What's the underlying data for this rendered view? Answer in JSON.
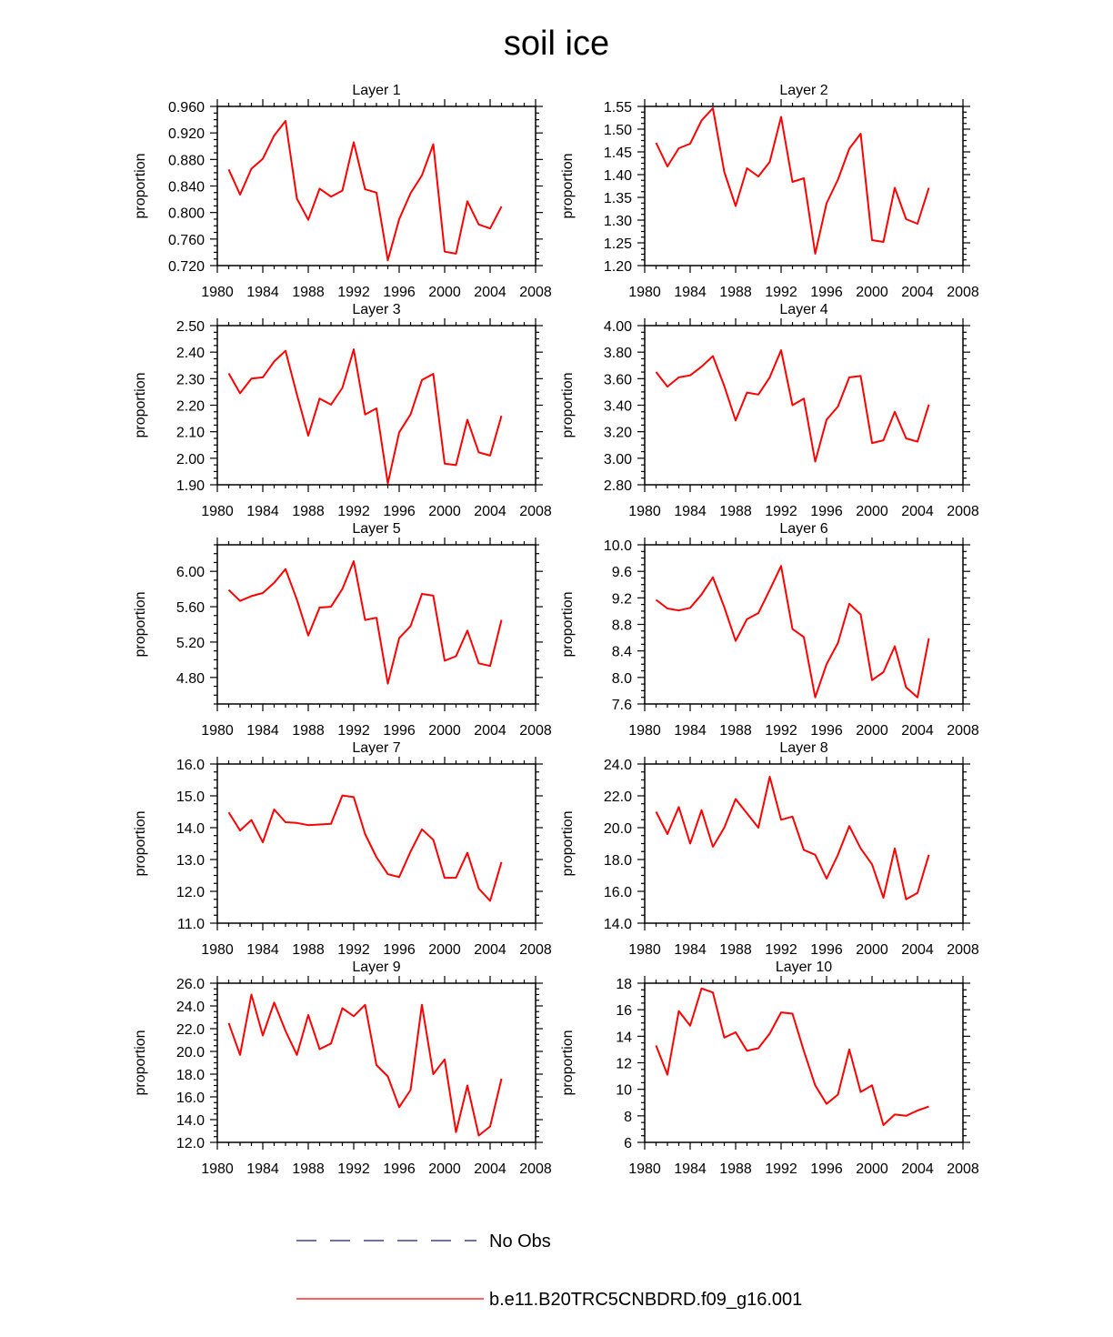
{
  "title": "soil ice",
  "colors": {
    "series": "#ff0000",
    "no_obs": "#1a1a80",
    "axis": "#000000"
  },
  "legend": [
    {
      "label": "No Obs",
      "style": "dashed",
      "color": "#1a1a80"
    },
    {
      "label": "b.e11.B20TRC5CNBDRD.f09_g16.001",
      "style": "solid",
      "color": "#ff0000"
    }
  ],
  "chart_data": [
    {
      "type": "line",
      "title": "Layer 1",
      "ylabel": "proportion",
      "xlim": [
        1980,
        2008
      ],
      "xticks": [
        1980,
        1984,
        1988,
        1992,
        1996,
        2000,
        2004,
        2008
      ],
      "xticklabels": [
        "1980",
        "1984",
        "1988",
        "1992",
        "1996",
        "2000",
        "2004",
        "2008"
      ],
      "ylim": [
        0.72,
        0.96
      ],
      "yticks": [
        0.72,
        0.76,
        0.8,
        0.84,
        0.88,
        0.92,
        0.96
      ],
      "yticklabels": [
        "0.720",
        "0.760",
        "0.800",
        "0.840",
        "0.880",
        "0.920",
        "0.960"
      ],
      "yminor": 4,
      "x": [
        1981,
        1982,
        1983,
        1984,
        1985,
        1986,
        1987,
        1988,
        1989,
        1990,
        1991,
        1992,
        1993,
        1994,
        1995,
        1996,
        1997,
        1998,
        1999,
        2000,
        2001,
        2002,
        2003,
        2004,
        2005
      ],
      "series": [
        {
          "name": "b.e11.B20TRC5CNBDRD.f09_g16.001",
          "values": [
            0.865,
            0.827,
            0.866,
            0.881,
            0.916,
            0.938,
            0.821,
            0.789,
            0.836,
            0.824,
            0.833,
            0.906,
            0.835,
            0.83,
            0.728,
            0.79,
            0.829,
            0.856,
            0.903,
            0.741,
            0.738,
            0.817,
            0.782,
            0.776,
            0.809
          ]
        }
      ]
    },
    {
      "type": "line",
      "title": "Layer 2",
      "ylabel": "proportion",
      "xlim": [
        1980,
        2008
      ],
      "xticks": [
        1980,
        1984,
        1988,
        1992,
        1996,
        2000,
        2004,
        2008
      ],
      "xticklabels": [
        "1980",
        "1984",
        "1988",
        "1992",
        "1996",
        "2000",
        "2004",
        "2008"
      ],
      "ylim": [
        1.2,
        1.55
      ],
      "yticks": [
        1.2,
        1.25,
        1.3,
        1.35,
        1.4,
        1.45,
        1.5,
        1.55
      ],
      "yticklabels": [
        "1.20",
        "1.25",
        "1.30",
        "1.35",
        "1.40",
        "1.45",
        "1.50",
        "1.55"
      ],
      "yminor": 4,
      "x": [
        1981,
        1982,
        1983,
        1984,
        1985,
        1986,
        1987,
        1988,
        1989,
        1990,
        1991,
        1992,
        1993,
        1994,
        1995,
        1996,
        1997,
        1998,
        1999,
        2000,
        2001,
        2002,
        2003,
        2004,
        2005
      ],
      "series": [
        {
          "name": "b.e11.B20TRC5CNBDRD.f09_g16.001",
          "values": [
            1.47,
            1.418,
            1.458,
            1.468,
            1.519,
            1.546,
            1.406,
            1.331,
            1.414,
            1.396,
            1.428,
            1.527,
            1.384,
            1.392,
            1.226,
            1.337,
            1.389,
            1.457,
            1.49,
            1.256,
            1.252,
            1.371,
            1.302,
            1.292,
            1.371
          ]
        }
      ]
    },
    {
      "type": "line",
      "title": "Layer 3",
      "ylabel": "proportion",
      "xlim": [
        1980,
        2008
      ],
      "xticks": [
        1980,
        1984,
        1988,
        1992,
        1996,
        2000,
        2004,
        2008
      ],
      "xticklabels": [
        "1980",
        "1984",
        "1988",
        "1992",
        "1996",
        "2000",
        "2004",
        "2008"
      ],
      "ylim": [
        1.9,
        2.5
      ],
      "yticks": [
        1.9,
        2.0,
        2.1,
        2.2,
        2.3,
        2.4,
        2.5
      ],
      "yticklabels": [
        "1.90",
        "2.00",
        "2.10",
        "2.20",
        "2.30",
        "2.40",
        "2.50"
      ],
      "yminor": 4,
      "x": [
        1981,
        1982,
        1983,
        1984,
        1985,
        1986,
        1987,
        1988,
        1989,
        1990,
        1991,
        1992,
        1993,
        1994,
        1995,
        1996,
        1997,
        1998,
        1999,
        2000,
        2001,
        2002,
        2003,
        2004,
        2005
      ],
      "series": [
        {
          "name": "b.e11.B20TRC5CNBDRD.f09_g16.001",
          "values": [
            2.32,
            2.245,
            2.3,
            2.305,
            2.365,
            2.405,
            2.24,
            2.085,
            2.225,
            2.202,
            2.265,
            2.41,
            2.165,
            2.188,
            1.905,
            2.098,
            2.165,
            2.295,
            2.318,
            1.98,
            1.974,
            2.145,
            2.022,
            2.01,
            2.16
          ]
        }
      ]
    },
    {
      "type": "line",
      "title": "Layer 4",
      "ylabel": "proportion",
      "xlim": [
        1980,
        2008
      ],
      "xticks": [
        1980,
        1984,
        1988,
        1992,
        1996,
        2000,
        2004,
        2008
      ],
      "xticklabels": [
        "1980",
        "1984",
        "1988",
        "1992",
        "1996",
        "2000",
        "2004",
        "2008"
      ],
      "ylim": [
        2.8,
        4.0
      ],
      "yticks": [
        2.8,
        3.0,
        3.2,
        3.4,
        3.6,
        3.8,
        4.0
      ],
      "yticklabels": [
        "2.80",
        "3.00",
        "3.20",
        "3.40",
        "3.60",
        "3.80",
        "4.00"
      ],
      "yminor": 4,
      "x": [
        1981,
        1982,
        1983,
        1984,
        1985,
        1986,
        1987,
        1988,
        1989,
        1990,
        1991,
        1992,
        1993,
        1994,
        1995,
        1996,
        1997,
        1998,
        1999,
        2000,
        2001,
        2002,
        2003,
        2004,
        2005
      ],
      "series": [
        {
          "name": "b.e11.B20TRC5CNBDRD.f09_g16.001",
          "values": [
            3.65,
            3.54,
            3.61,
            3.625,
            3.69,
            3.77,
            3.545,
            3.285,
            3.495,
            3.48,
            3.61,
            3.815,
            3.4,
            3.45,
            2.975,
            3.29,
            3.39,
            3.61,
            3.62,
            3.115,
            3.135,
            3.35,
            3.15,
            3.125,
            3.405
          ]
        }
      ]
    },
    {
      "type": "line",
      "title": "Layer 5",
      "ylabel": "proportion",
      "xlim": [
        1980,
        2008
      ],
      "xticks": [
        1980,
        1984,
        1988,
        1992,
        1996,
        2000,
        2004,
        2008
      ],
      "xticklabels": [
        "1980",
        "1984",
        "1988",
        "1992",
        "1996",
        "2000",
        "2004",
        "2008"
      ],
      "ylim": [
        4.5,
        6.3
      ],
      "yticks": [
        4.8,
        5.2,
        5.6,
        6.0
      ],
      "yticklabels": [
        "4.80",
        "5.20",
        "5.60",
        "6.00"
      ],
      "yminor": 4,
      "x": [
        1981,
        1982,
        1983,
        1984,
        1985,
        1986,
        1987,
        1988,
        1989,
        1990,
        1991,
        1992,
        1993,
        1994,
        1995,
        1996,
        1997,
        1998,
        1999,
        2000,
        2001,
        2002,
        2003,
        2004,
        2005
      ],
      "series": [
        {
          "name": "b.e11.B20TRC5CNBDRD.f09_g16.001",
          "values": [
            5.79,
            5.665,
            5.72,
            5.755,
            5.87,
            6.025,
            5.68,
            5.275,
            5.59,
            5.6,
            5.8,
            6.115,
            5.45,
            5.475,
            4.73,
            5.245,
            5.38,
            5.745,
            5.725,
            4.99,
            5.04,
            5.33,
            4.96,
            4.93,
            5.45
          ]
        }
      ]
    },
    {
      "type": "line",
      "title": "Layer 6",
      "ylabel": "proportion",
      "xlim": [
        1980,
        2008
      ],
      "xticks": [
        1980,
        1984,
        1988,
        1992,
        1996,
        2000,
        2004,
        2008
      ],
      "xticklabels": [
        "1980",
        "1984",
        "1988",
        "1992",
        "1996",
        "2000",
        "2004",
        "2008"
      ],
      "ylim": [
        7.6,
        10.0
      ],
      "yticks": [
        7.6,
        8.0,
        8.4,
        8.8,
        9.2,
        9.6,
        10.0
      ],
      "yticklabels": [
        "7.6",
        "8.0",
        "8.4",
        "8.8",
        "9.2",
        "9.6",
        "10.0"
      ],
      "yminor": 4,
      "x": [
        1981,
        1982,
        1983,
        1984,
        1985,
        1986,
        1987,
        1988,
        1989,
        1990,
        1991,
        1992,
        1993,
        1994,
        1995,
        1996,
        1997,
        1998,
        1999,
        2000,
        2001,
        2002,
        2003,
        2004,
        2005
      ],
      "series": [
        {
          "name": "b.e11.B20TRC5CNBDRD.f09_g16.001",
          "values": [
            9.17,
            9.04,
            9.01,
            9.05,
            9.25,
            9.51,
            9.06,
            8.55,
            8.88,
            8.97,
            9.32,
            9.68,
            8.73,
            8.61,
            7.7,
            8.2,
            8.52,
            9.11,
            8.95,
            7.96,
            8.08,
            8.47,
            7.85,
            7.7,
            8.59
          ]
        }
      ]
    },
    {
      "type": "line",
      "title": "Layer 7",
      "ylabel": "proportion",
      "xlim": [
        1980,
        2008
      ],
      "xticks": [
        1980,
        1984,
        1988,
        1992,
        1996,
        2000,
        2004,
        2008
      ],
      "xticklabels": [
        "1980",
        "1984",
        "1988",
        "1992",
        "1996",
        "2000",
        "2004",
        "2008"
      ],
      "ylim": [
        11.0,
        16.0
      ],
      "yticks": [
        11.0,
        12.0,
        13.0,
        14.0,
        15.0,
        16.0
      ],
      "yticklabels": [
        "11.0",
        "12.0",
        "13.0",
        "14.0",
        "15.0",
        "16.0"
      ],
      "yminor": 4,
      "x": [
        1981,
        1982,
        1983,
        1984,
        1985,
        1986,
        1987,
        1988,
        1989,
        1990,
        1991,
        1992,
        1993,
        1994,
        1995,
        1996,
        1997,
        1998,
        1999,
        2000,
        2001,
        2002,
        2003,
        2004,
        2005
      ],
      "series": [
        {
          "name": "b.e11.B20TRC5CNBDRD.f09_g16.001",
          "values": [
            14.48,
            13.91,
            14.24,
            13.54,
            14.57,
            14.17,
            14.15,
            14.08,
            14.1,
            14.12,
            15.01,
            14.96,
            13.8,
            13.07,
            12.54,
            12.45,
            13.25,
            13.95,
            13.62,
            12.42,
            12.43,
            13.21,
            12.09,
            11.7,
            12.92
          ]
        }
      ]
    },
    {
      "type": "line",
      "title": "Layer 8",
      "ylabel": "proportion",
      "xlim": [
        1980,
        2008
      ],
      "xticks": [
        1980,
        1984,
        1988,
        1992,
        1996,
        2000,
        2004,
        2008
      ],
      "xticklabels": [
        "1980",
        "1984",
        "1988",
        "1992",
        "1996",
        "2000",
        "2004",
        "2008"
      ],
      "ylim": [
        14.0,
        24.0
      ],
      "yticks": [
        14.0,
        16.0,
        18.0,
        20.0,
        22.0,
        24.0
      ],
      "yticklabels": [
        "14.0",
        "16.0",
        "18.0",
        "20.0",
        "22.0",
        "24.0"
      ],
      "yminor": 4,
      "x": [
        1981,
        1982,
        1983,
        1984,
        1985,
        1986,
        1987,
        1988,
        1989,
        1990,
        1991,
        1992,
        1993,
        1994,
        1995,
        1996,
        1997,
        1998,
        1999,
        2000,
        2001,
        2002,
        2003,
        2004,
        2005
      ],
      "series": [
        {
          "name": "b.e11.B20TRC5CNBDRD.f09_g16.001",
          "values": [
            21.0,
            19.6,
            21.3,
            19.0,
            21.1,
            18.8,
            20.0,
            21.8,
            20.9,
            20.0,
            23.2,
            20.5,
            20.7,
            18.6,
            18.3,
            16.8,
            18.3,
            20.1,
            18.7,
            17.7,
            15.6,
            18.7,
            15.5,
            15.9,
            18.3
          ]
        }
      ]
    },
    {
      "type": "line",
      "title": "Layer 9",
      "ylabel": "proportion",
      "xlim": [
        1980,
        2008
      ],
      "xticks": [
        1980,
        1984,
        1988,
        1992,
        1996,
        2000,
        2004,
        2008
      ],
      "xticklabels": [
        "1980",
        "1984",
        "1988",
        "1992",
        "1996",
        "2000",
        "2004",
        "2008"
      ],
      "ylim": [
        12.0,
        26.0
      ],
      "yticks": [
        12.0,
        14.0,
        16.0,
        18.0,
        20.0,
        22.0,
        24.0,
        26.0
      ],
      "yticklabels": [
        "12.0",
        "14.0",
        "16.0",
        "18.0",
        "20.0",
        "22.0",
        "24.0",
        "26.0"
      ],
      "yminor": 4,
      "x": [
        1981,
        1982,
        1983,
        1984,
        1985,
        1986,
        1987,
        1988,
        1989,
        1990,
        1991,
        1992,
        1993,
        1994,
        1995,
        1996,
        1997,
        1998,
        1999,
        2000,
        2001,
        2002,
        2003,
        2004,
        2005
      ],
      "series": [
        {
          "name": "b.e11.B20TRC5CNBDRD.f09_g16.001",
          "values": [
            22.5,
            19.7,
            25.0,
            21.4,
            24.3,
            21.8,
            19.7,
            23.2,
            20.2,
            20.7,
            23.8,
            23.1,
            24.1,
            18.8,
            17.8,
            15.1,
            16.6,
            24.1,
            18.0,
            19.3,
            12.9,
            17.0,
            12.6,
            13.4,
            17.6
          ]
        }
      ]
    },
    {
      "type": "line",
      "title": "Layer 10",
      "ylabel": "proportion",
      "xlim": [
        1980,
        2008
      ],
      "xticks": [
        1980,
        1984,
        1988,
        1992,
        1996,
        2000,
        2004,
        2008
      ],
      "xticklabels": [
        "1980",
        "1984",
        "1988",
        "1992",
        "1996",
        "2000",
        "2004",
        "2008"
      ],
      "ylim": [
        6,
        18
      ],
      "yticks": [
        6,
        8,
        10,
        12,
        14,
        16,
        18
      ],
      "yticklabels": [
        "6",
        "8",
        "10",
        "12",
        "14",
        "16",
        "18"
      ],
      "yminor": 4,
      "x": [
        1981,
        1982,
        1983,
        1984,
        1985,
        1986,
        1987,
        1988,
        1989,
        1990,
        1991,
        1992,
        1993,
        1994,
        1995,
        1996,
        1997,
        1998,
        1999,
        2000,
        2001,
        2002,
        2003,
        2004,
        2005
      ],
      "series": [
        {
          "name": "b.e11.B20TRC5CNBDRD.f09_g16.001",
          "values": [
            13.3,
            11.1,
            15.9,
            14.8,
            17.6,
            17.3,
            13.9,
            14.3,
            12.9,
            13.1,
            14.2,
            15.8,
            15.7,
            12.9,
            10.3,
            8.9,
            9.6,
            13.0,
            9.8,
            10.3,
            7.3,
            8.1,
            8.0,
            8.4,
            8.7
          ]
        }
      ]
    }
  ]
}
